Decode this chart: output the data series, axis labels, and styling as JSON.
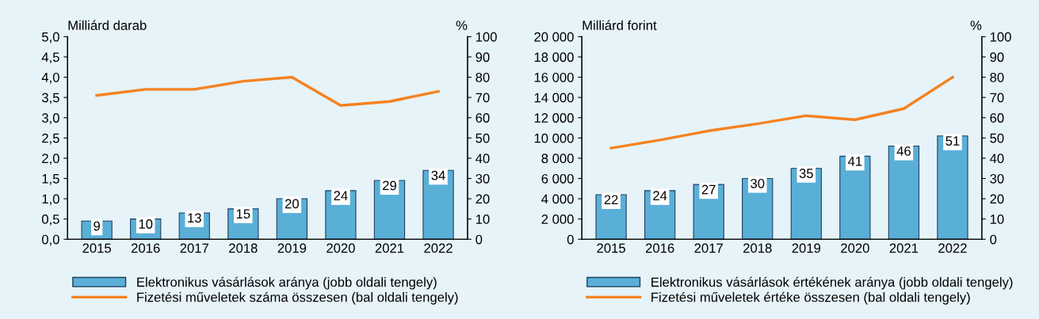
{
  "chart_data": [
    {
      "type": "bar",
      "categories": [
        "2015",
        "2016",
        "2017",
        "2018",
        "2019",
        "2020",
        "2021",
        "2022"
      ],
      "ylabel": "Milliárd darab",
      "y2label": "%",
      "series": [
        {
          "axis": "y2",
          "name": "Elektronikus vásárlások aránya (jobb oldali tengely)",
          "color": "#5aafd7",
          "values": [
            9,
            10,
            13,
            15,
            20,
            24,
            29,
            34
          ],
          "value_labels": [
            "9",
            "10",
            "13",
            "15",
            "20",
            "24",
            "29",
            "34"
          ]
        },
        {
          "type": "line",
          "axis": "y",
          "name": "Fizetési műveletek száma összesen (bal oldali tengely)",
          "color": "#f58220",
          "values": [
            3.55,
            3.7,
            3.7,
            3.9,
            4.0,
            3.3,
            3.4,
            3.65
          ]
        }
      ],
      "ylim": [
        0,
        5
      ],
      "yticks": [
        {
          "value": 0,
          "label": "0,0"
        },
        {
          "value": 0.5,
          "label": "0,5"
        },
        {
          "value": 1,
          "label": "1,0"
        },
        {
          "value": 1.5,
          "label": "1,5"
        },
        {
          "value": 2,
          "label": "2,0"
        },
        {
          "value": 2.5,
          "label": "2,5"
        },
        {
          "value": 3,
          "label": "3,0"
        },
        {
          "value": 3.5,
          "label": "3,5"
        },
        {
          "value": 4,
          "label": "4,0"
        },
        {
          "value": 4.5,
          "label": "4,5"
        },
        {
          "value": 5,
          "label": "5,0"
        }
      ],
      "y2lim": [
        0,
        100
      ],
      "y2ticks": [
        0,
        10,
        20,
        30,
        40,
        50,
        60,
        70,
        80,
        90,
        100
      ],
      "legend": "bottom"
    },
    {
      "type": "bar",
      "categories": [
        "2015",
        "2016",
        "2017",
        "2018",
        "2019",
        "2020",
        "2021",
        "2022"
      ],
      "ylabel": "Milliárd forint",
      "y2label": "%",
      "series": [
        {
          "axis": "y2",
          "name": "Elektronikus vásárlások értékének aránya (jobb oldali tengely)",
          "color": "#5aafd7",
          "values": [
            22,
            24,
            27,
            30,
            35,
            41,
            46,
            51
          ],
          "value_labels": [
            "22",
            "24",
            "27",
            "30",
            "35",
            "41",
            "46",
            "51"
          ]
        },
        {
          "type": "line",
          "axis": "y",
          "name": "Fizetési műveletek értéke összesen (bal oldali tengely)",
          "color": "#f58220",
          "values": [
            9000,
            9800,
            10700,
            11400,
            12200,
            11800,
            12900,
            16000
          ]
        }
      ],
      "ylim": [
        0,
        20000
      ],
      "yticks": [
        0,
        {
          "value": 2000,
          "label": "2 000"
        },
        {
          "value": 4000,
          "label": "4 000"
        },
        {
          "value": 6000,
          "label": "6 000"
        },
        {
          "value": 8000,
          "label": "8 000"
        },
        {
          "value": 10000,
          "label": "10 000"
        },
        {
          "value": 12000,
          "label": "12 000"
        },
        {
          "value": 14000,
          "label": "14 000"
        },
        {
          "value": 16000,
          "label": "16 000"
        },
        {
          "value": 18000,
          "label": "18 000"
        },
        {
          "value": 20000,
          "label": "20 000"
        }
      ],
      "y2lim": [
        0,
        100
      ],
      "y2ticks": [
        0,
        10,
        20,
        30,
        40,
        50,
        60,
        70,
        80,
        90,
        100
      ],
      "legend": "bottom"
    }
  ]
}
